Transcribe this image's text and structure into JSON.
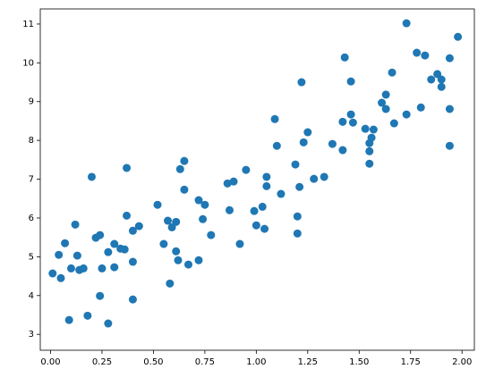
{
  "chart_data": {
    "type": "scatter",
    "color": "#1f77b4",
    "x": [
      0.01,
      0.04,
      0.05,
      0.07,
      0.09,
      0.1,
      0.12,
      0.13,
      0.14,
      0.16,
      0.18,
      0.2,
      0.22,
      0.24,
      0.24,
      0.25,
      0.28,
      0.28,
      0.31,
      0.31,
      0.34,
      0.36,
      0.37,
      0.37,
      0.4,
      0.4,
      0.4,
      0.43,
      0.52,
      0.55,
      0.57,
      0.58,
      0.59,
      0.61,
      0.61,
      0.62,
      0.63,
      0.65,
      0.65,
      0.67,
      0.72,
      0.72,
      0.74,
      0.75,
      0.78,
      0.86,
      0.87,
      0.89,
      0.92,
      0.95,
      0.99,
      1.0,
      1.03,
      1.04,
      1.05,
      1.05,
      1.09,
      1.1,
      1.12,
      1.19,
      1.2,
      1.2,
      1.21,
      1.22,
      1.23,
      1.25,
      1.28,
      1.33,
      1.37,
      1.42,
      1.42,
      1.43,
      1.46,
      1.46,
      1.47,
      1.53,
      1.55,
      1.55,
      1.55,
      1.56,
      1.57,
      1.61,
      1.63,
      1.63,
      1.66,
      1.67,
      1.73,
      1.73,
      1.78,
      1.8,
      1.82,
      1.85,
      1.88,
      1.9,
      1.9,
      1.94,
      1.94,
      1.94,
      1.98
    ],
    "y": [
      4.57,
      5.05,
      4.45,
      5.35,
      3.37,
      4.7,
      5.83,
      5.03,
      4.66,
      4.7,
      3.48,
      7.06,
      5.49,
      5.56,
      3.99,
      4.7,
      3.28,
      5.12,
      4.73,
      5.33,
      5.21,
      5.19,
      7.29,
      6.06,
      5.67,
      4.87,
      3.9,
      5.79,
      6.34,
      5.33,
      5.93,
      4.31,
      5.76,
      5.9,
      5.14,
      4.91,
      7.26,
      7.47,
      6.73,
      4.8,
      4.91,
      6.46,
      5.97,
      6.34,
      5.56,
      6.89,
      6.2,
      6.94,
      5.33,
      7.24,
      6.18,
      5.81,
      6.29,
      5.72,
      7.06,
      6.82,
      8.55,
      7.86,
      6.62,
      7.38,
      6.04,
      5.6,
      6.8,
      9.5,
      7.95,
      8.21,
      7.01,
      7.06,
      7.91,
      8.48,
      7.75,
      10.14,
      8.67,
      9.52,
      8.46,
      8.3,
      7.93,
      7.72,
      7.4,
      8.07,
      8.28,
      8.97,
      8.81,
      9.18,
      9.75,
      8.44,
      11.02,
      8.67,
      10.26,
      8.85,
      10.19,
      9.57,
      9.71,
      9.57,
      9.38,
      7.86,
      10.12,
      8.81,
      10.67
    ],
    "xlim": [
      -0.05,
      2.06
    ],
    "ylim": [
      2.59,
      11.39
    ],
    "xticks": [
      {
        "value": 0,
        "label": "0.00"
      },
      {
        "value": 0.25,
        "label": "0.25"
      },
      {
        "value": 0.5,
        "label": "0.50"
      },
      {
        "value": 0.75,
        "label": "0.75"
      },
      {
        "value": 1,
        "label": "1.00"
      },
      {
        "value": 1.25,
        "label": "1.25"
      },
      {
        "value": 1.5,
        "label": "1.50"
      },
      {
        "value": 1.75,
        "label": "1.75"
      },
      {
        "value": 2,
        "label": "2.00"
      }
    ],
    "yticks": [
      3,
      4,
      5,
      6,
      7,
      8,
      9,
      10,
      11
    ]
  }
}
